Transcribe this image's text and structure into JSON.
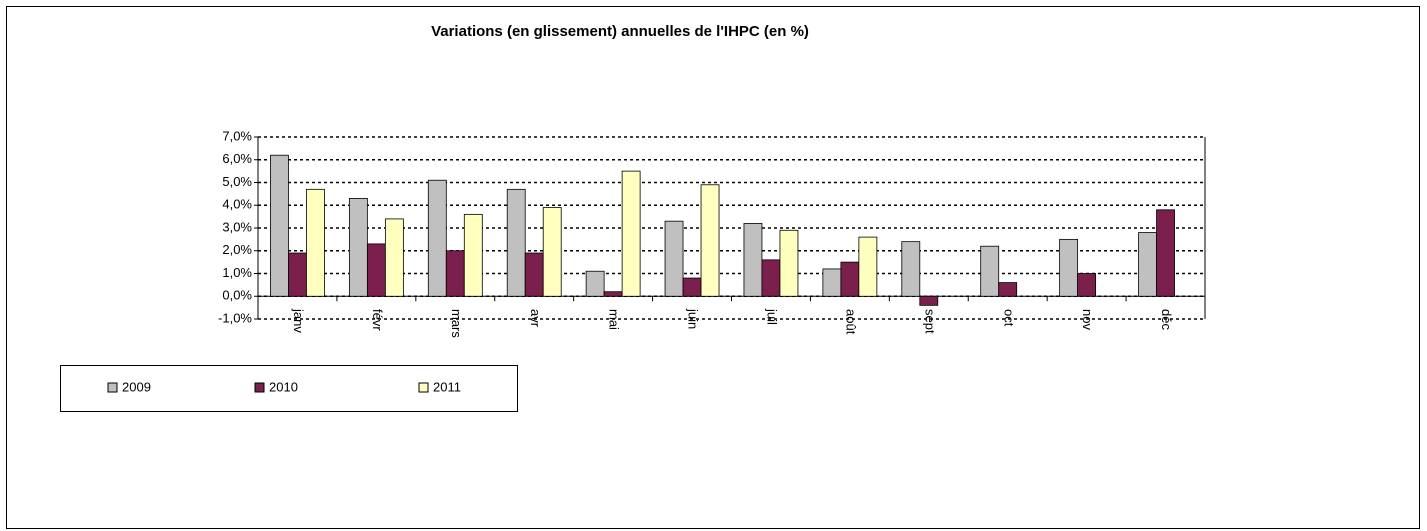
{
  "chart_data": {
    "type": "bar",
    "title": "Variations (en glissement) annuelles de l'IHPC (en %)",
    "categories": [
      "janv",
      "févr",
      "mars",
      "avr",
      "mai",
      "juin",
      "juil",
      "août",
      "sept",
      "oct",
      "nov",
      "déc"
    ],
    "series": [
      {
        "name": "2009",
        "color": "#c0c0c0",
        "values": [
          6.2,
          4.3,
          5.1,
          4.7,
          1.1,
          3.3,
          3.2,
          1.2,
          2.4,
          2.2,
          2.5,
          2.8
        ]
      },
      {
        "name": "2010",
        "color": "#7b1f4c",
        "values": [
          1.9,
          2.3,
          2.0,
          1.9,
          0.2,
          0.8,
          1.6,
          1.5,
          -0.4,
          0.6,
          1.0,
          3.8
        ]
      },
      {
        "name": "2011",
        "color": "#ffffc0",
        "values": [
          4.7,
          3.4,
          3.6,
          3.9,
          5.5,
          4.9,
          2.9,
          2.6,
          null,
          null,
          null,
          null
        ]
      }
    ],
    "ylim": [
      -1,
      7
    ],
    "yticks": [
      {
        "value": -1,
        "label": "-1,0%"
      },
      {
        "value": 0,
        "label": "0,0%"
      },
      {
        "value": 1,
        "label": "1,0%"
      },
      {
        "value": 2,
        "label": "2,0%"
      },
      {
        "value": 3,
        "label": "3,0%"
      },
      {
        "value": 4,
        "label": "4,0%"
      },
      {
        "value": 5,
        "label": "5,0%"
      },
      {
        "value": 6,
        "label": "6,0%"
      },
      {
        "value": 7,
        "label": "7,0%"
      }
    ],
    "grid": true,
    "legend": "bottom-left"
  }
}
